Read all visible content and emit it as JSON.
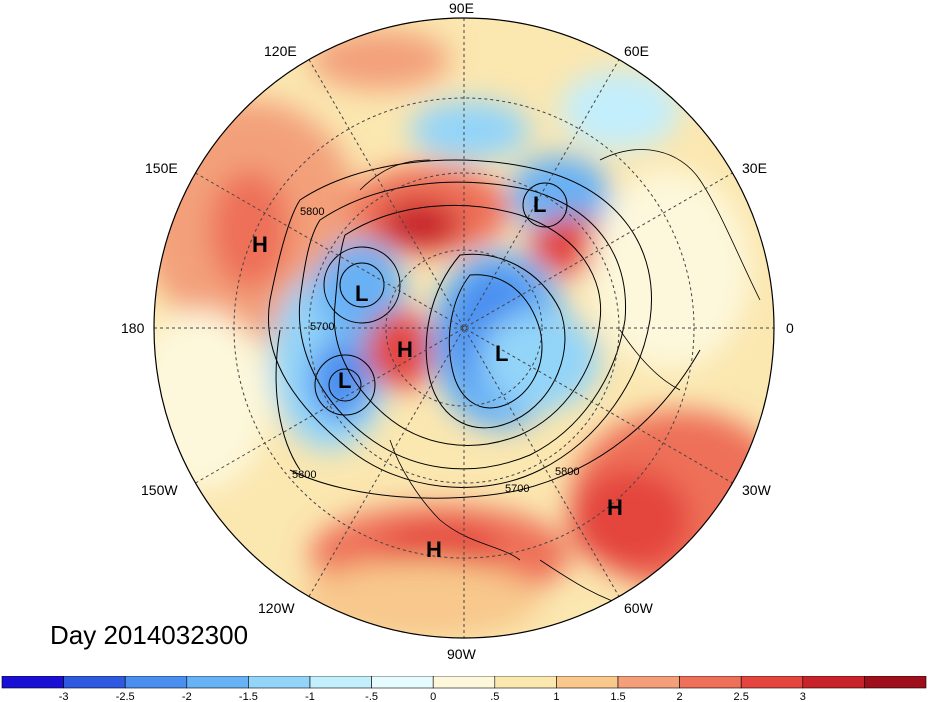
{
  "map": {
    "longitude_labels": [
      "90E",
      "60E",
      "30E",
      "0",
      "30W",
      "60W",
      "90W",
      "120W",
      "150W",
      "180",
      "150E",
      "120E"
    ],
    "pressure_systems": [
      {
        "type": "H",
        "label": "H"
      },
      {
        "type": "L",
        "label": "L"
      },
      {
        "type": "L",
        "label": "L"
      },
      {
        "type": "H",
        "label": "H"
      },
      {
        "type": "L",
        "label": "L"
      },
      {
        "type": "L",
        "label": "L"
      },
      {
        "type": "H",
        "label": "H"
      },
      {
        "type": "H",
        "label": "H"
      }
    ],
    "contour_labels": [
      "5800",
      "5700",
      "5800",
      "5700",
      "5800"
    ]
  },
  "title": "Day 2014032300",
  "colorbar": {
    "colors": [
      "#1a10d4",
      "#2f59e0",
      "#4a8ef0",
      "#67b1f5",
      "#93d4f9",
      "#c3eefc",
      "#e6fbfd",
      "#fdf8dc",
      "#fbe7b0",
      "#f8c88c",
      "#f3a07a",
      "#ee7058",
      "#e4453e",
      "#c8222b",
      "#9e0f1b"
    ],
    "tick_labels": [
      "-3",
      "-2.5",
      "-2",
      "-1.5",
      "-1",
      "-.5",
      "0",
      ".5",
      "1",
      "1.5",
      "2",
      "2.5",
      "3"
    ]
  }
}
